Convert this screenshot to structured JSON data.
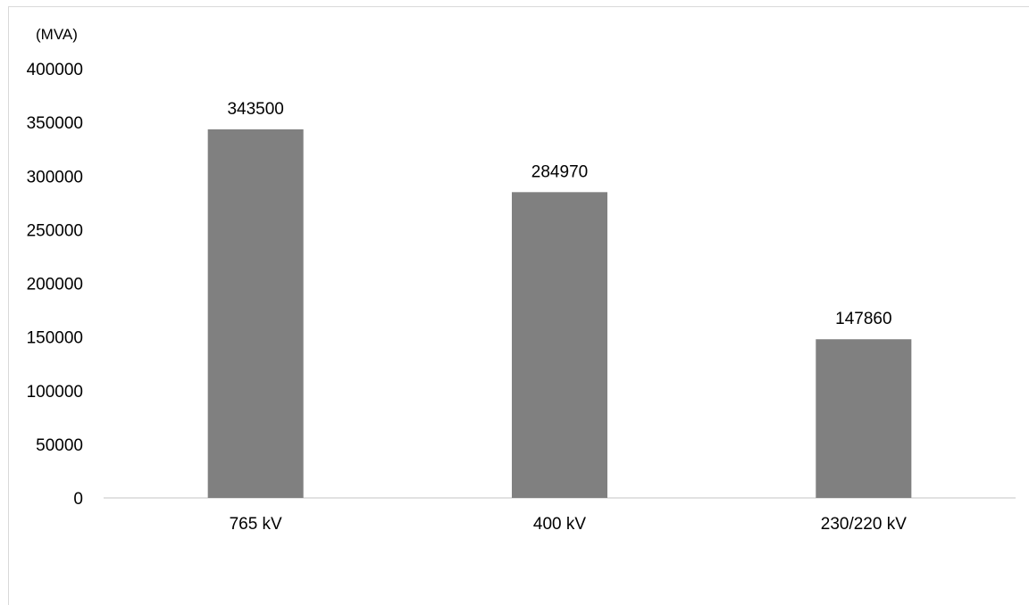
{
  "chart_data": {
    "type": "bar",
    "ylabel": "(MVA)",
    "categories": [
      "765 kV",
      "400 kV",
      "230/220 kV"
    ],
    "values": [
      343500,
      284970,
      147860
    ],
    "data_labels": [
      "343500",
      "284970",
      "147860"
    ],
    "ylim": [
      0,
      400000
    ],
    "yticks": [
      0,
      50000,
      100000,
      150000,
      200000,
      250000,
      300000,
      350000,
      400000
    ],
    "ytick_labels": [
      "0",
      "50000",
      "100000",
      "150000",
      "200000",
      "250000",
      "300000",
      "350000",
      "400000"
    ],
    "grid": false,
    "legend": "none",
    "bar_color": "#808080"
  }
}
